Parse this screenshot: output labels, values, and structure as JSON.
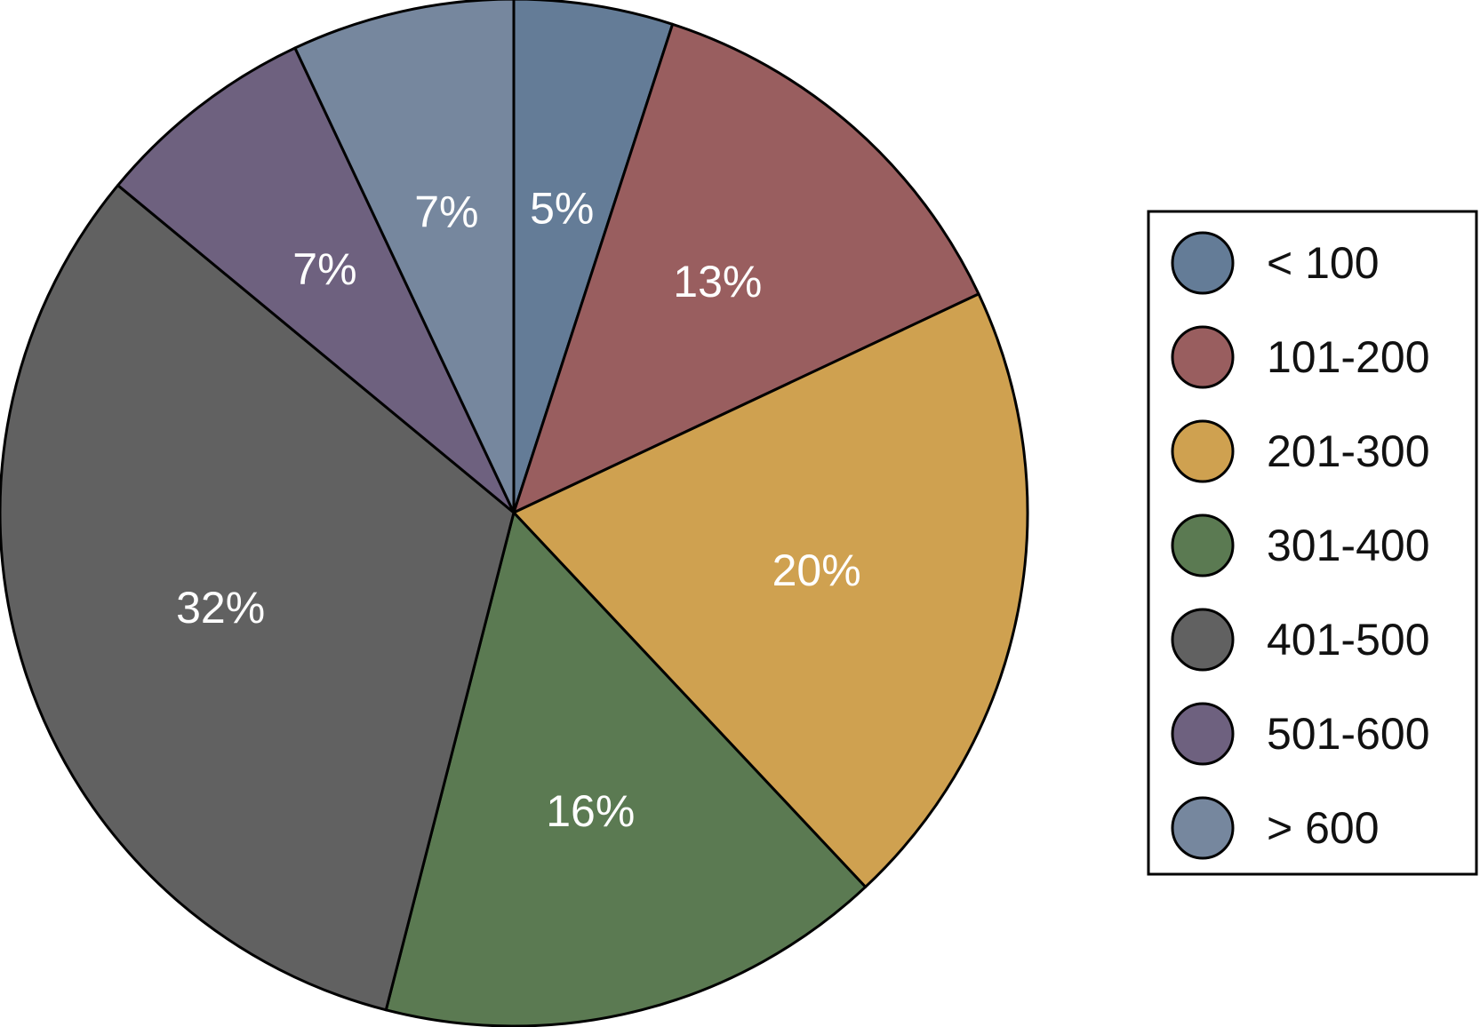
{
  "chart_data": {
    "type": "pie",
    "start_angle": "12 o'clock",
    "direction": "clockwise",
    "legend": "right",
    "slices": [
      {
        "label": "< 100",
        "value": 5,
        "value_label": "5%",
        "color": "#647c97"
      },
      {
        "label": "101-200",
        "value": 13,
        "value_label": "13%",
        "color": "#995e5f"
      },
      {
        "label": "201-300",
        "value": 20,
        "value_label": "20%",
        "color": "#cfa150"
      },
      {
        "label": "301-400",
        "value": 16,
        "value_label": "16%",
        "color": "#5b7a52"
      },
      {
        "label": "401-500",
        "value": 32,
        "value_label": "32%",
        "color": "#616161"
      },
      {
        "label": "501-600",
        "value": 7,
        "value_label": "7%",
        "color": "#6e617f"
      },
      {
        "label": "> 600",
        "value": 7,
        "value_label": "7%",
        "color": "#76879e"
      }
    ]
  }
}
